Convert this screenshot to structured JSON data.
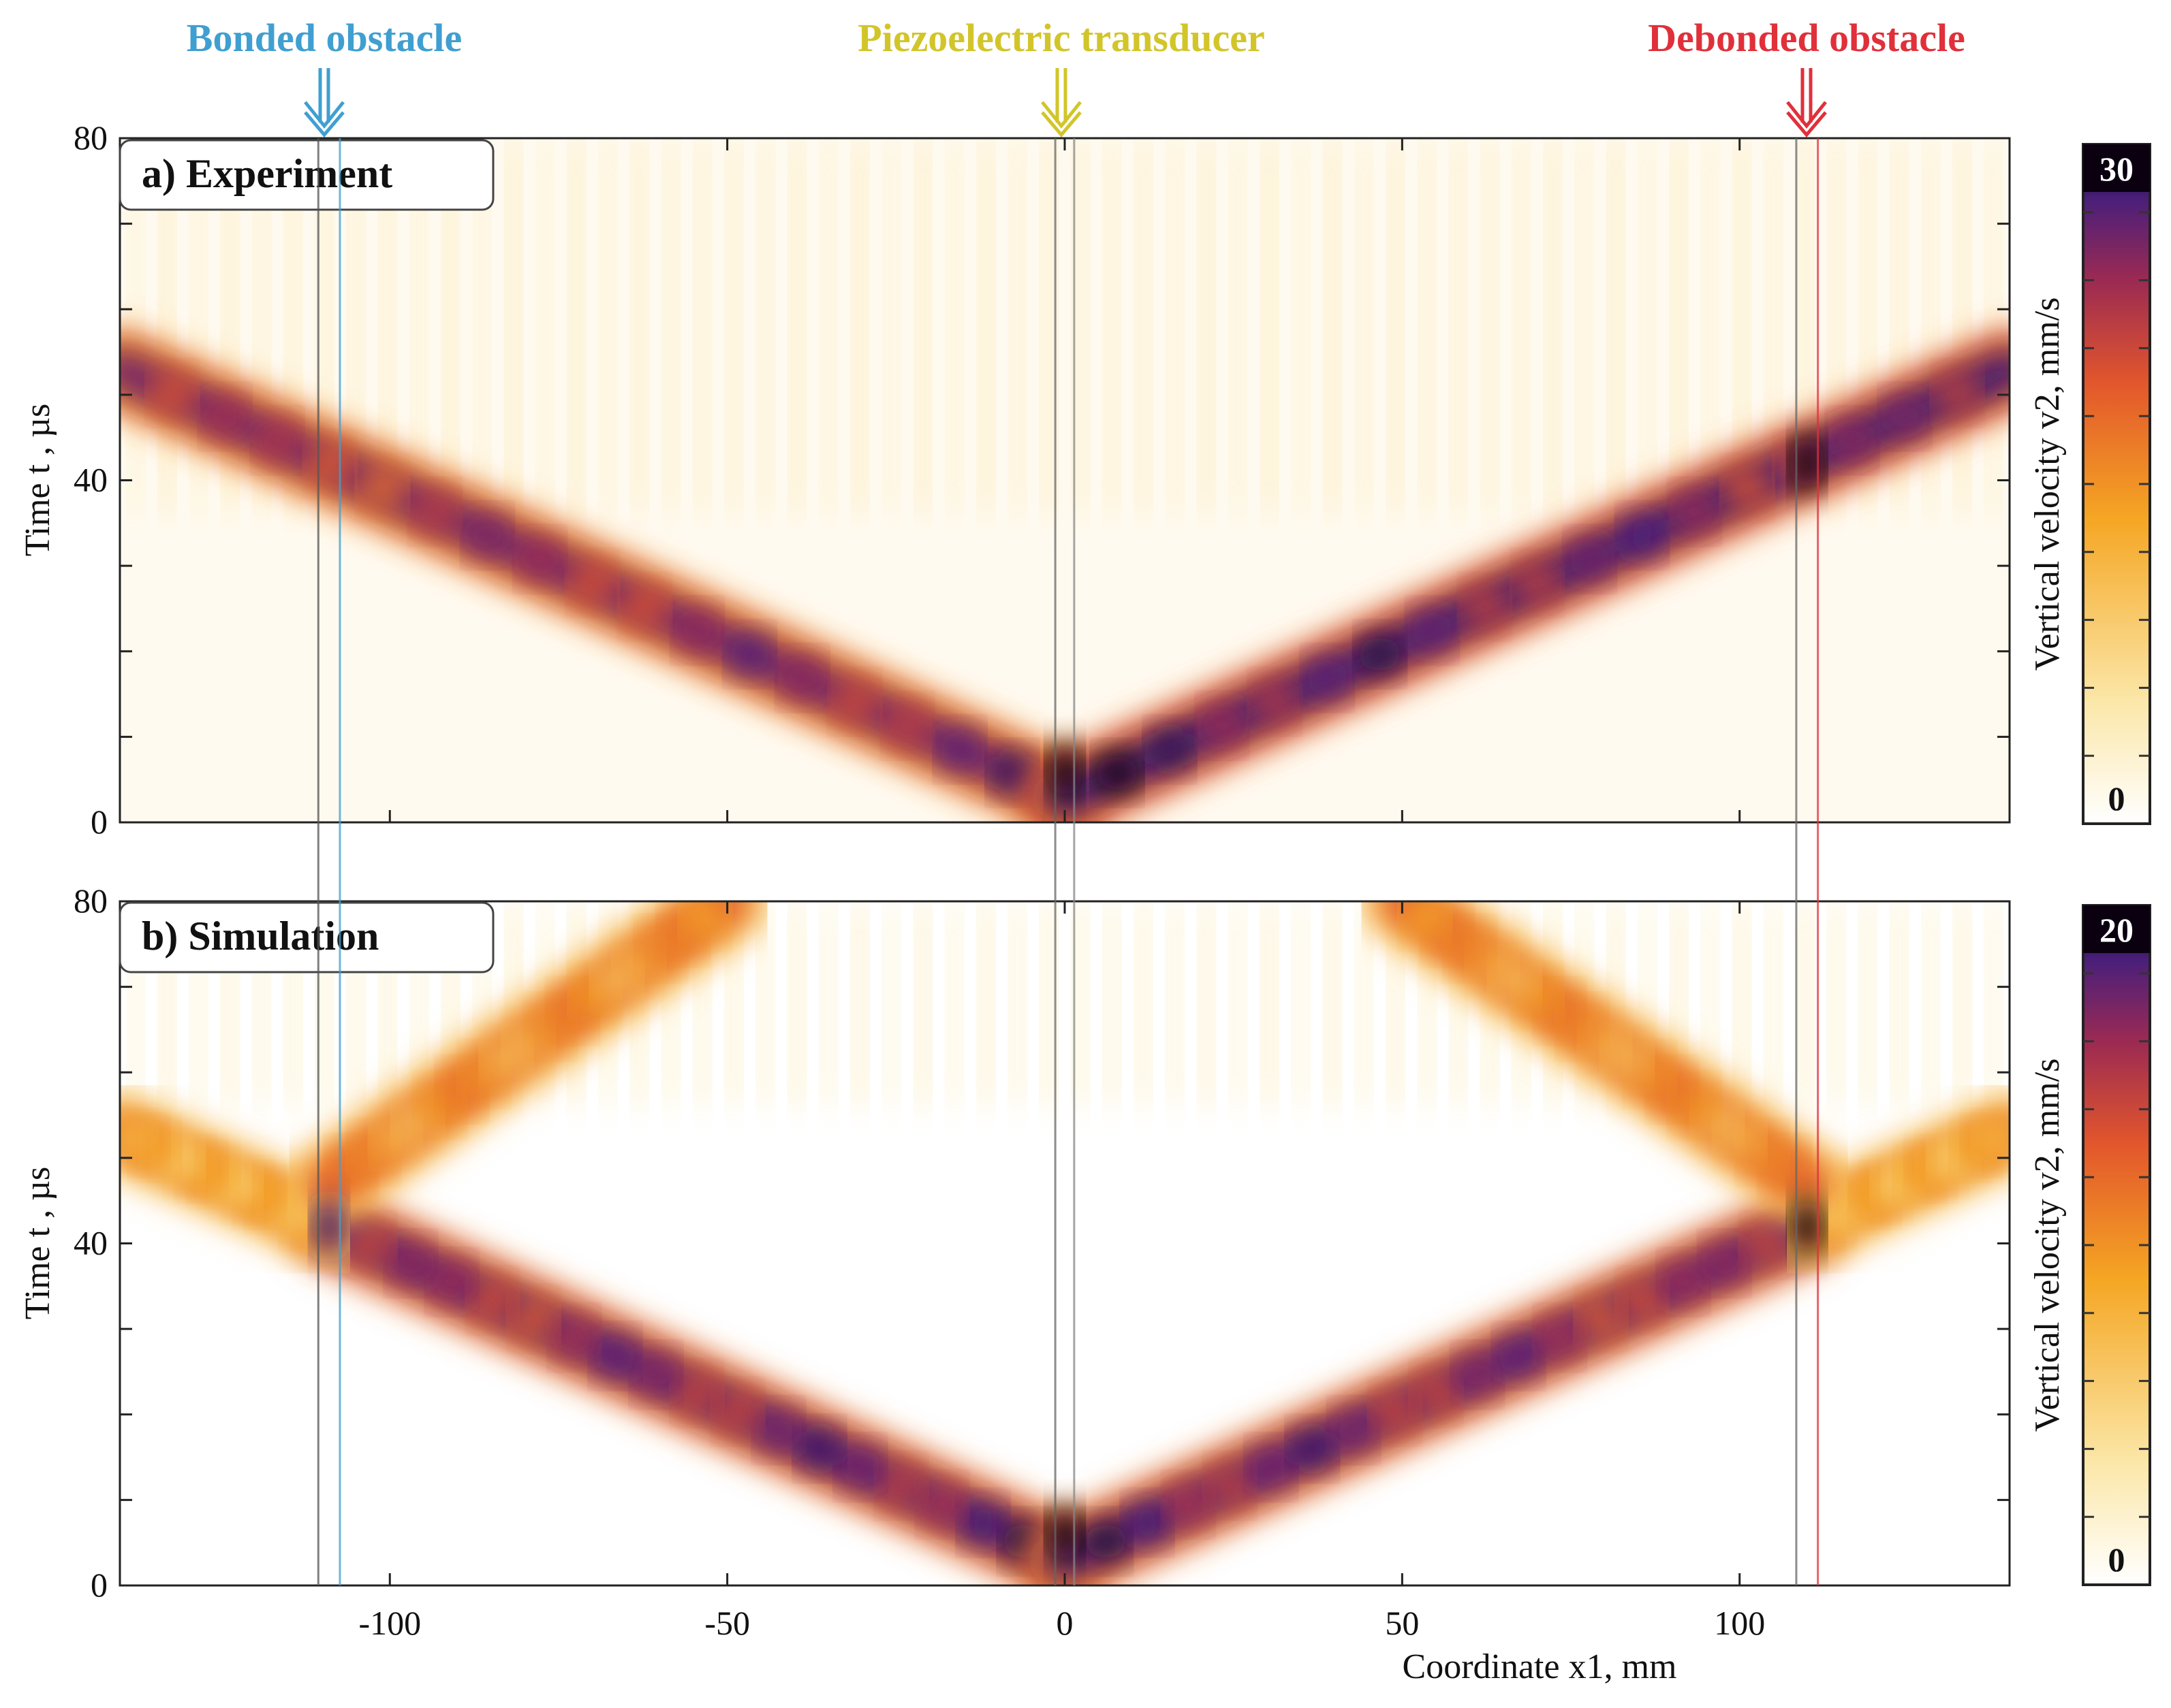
{
  "annotations": {
    "bonded": {
      "label": "Bonded obstacle",
      "color": "#3f9fd0",
      "x": -109
    },
    "transducer": {
      "label": "Piezoelectric transducer",
      "color": "#d2c52a",
      "x": 0
    },
    "debonded": {
      "label": "Debonded obstacle",
      "color": "#e0303a",
      "x": 110
    }
  },
  "chart_data": [
    {
      "type": "heatmap",
      "title": "a) Experiment",
      "xlabel": "",
      "ylabel": "Time t , µs",
      "xlim": [
        -140,
        140
      ],
      "ylim": [
        0,
        80
      ],
      "xticks": [
        -100,
        -50,
        0,
        50,
        100
      ],
      "xticklabels": [
        "-100",
        "-50",
        "0",
        "50",
        "100"
      ],
      "yticks": [
        0,
        40,
        80
      ],
      "yticklabels": [
        "0",
        "40",
        "80"
      ],
      "colorbar": {
        "label": "Vertical velocity  v2, mm/s",
        "min": 0,
        "max": 30,
        "min_label": "0",
        "max_label": "30"
      },
      "wavefronts": [
        {
          "from": [
            0,
            3
          ],
          "to": [
            -140,
            53
          ],
          "intensity": 0.75
        },
        {
          "from": [
            0,
            3
          ],
          "to": [
            140,
            53
          ],
          "intensity": 0.85
        }
      ]
    },
    {
      "type": "heatmap",
      "title": "b) Simulation",
      "xlabel": "Coordinate x1, mm",
      "ylabel": "Time t , µs",
      "xlim": [
        -140,
        140
      ],
      "ylim": [
        0,
        80
      ],
      "xticks": [
        -100,
        -50,
        0,
        50,
        100
      ],
      "xticklabels": [
        "-100",
        "-50",
        "0",
        "50",
        "100"
      ],
      "yticks": [
        0,
        40,
        80
      ],
      "yticklabels": [
        "0",
        "40",
        "80"
      ],
      "colorbar": {
        "label": "Vertical velocity  v2, mm/s",
        "min": 0,
        "max": 20,
        "min_label": "0",
        "max_label": "20"
      },
      "wavefronts": [
        {
          "from": [
            0,
            3
          ],
          "to": [
            -109,
            42
          ],
          "intensity": 0.8
        },
        {
          "from": [
            0,
            3
          ],
          "to": [
            110,
            42
          ],
          "intensity": 0.8
        },
        {
          "from": [
            -109,
            42
          ],
          "to": [
            -140,
            53
          ],
          "intensity": 0.45
        },
        {
          "from": [
            110,
            42
          ],
          "to": [
            140,
            53
          ],
          "intensity": 0.45
        },
        {
          "from": [
            -109,
            47
          ],
          "to": [
            -50,
            80
          ],
          "intensity": 0.5
        },
        {
          "from": [
            110,
            47
          ],
          "to": [
            50,
            80
          ],
          "intensity": 0.5
        }
      ]
    }
  ],
  "palette": {
    "stops": [
      "#ffffff",
      "#fbe7a8",
      "#f5a623",
      "#e2562c",
      "#9b2a53",
      "#4a1f7a",
      "#0a0010"
    ]
  }
}
